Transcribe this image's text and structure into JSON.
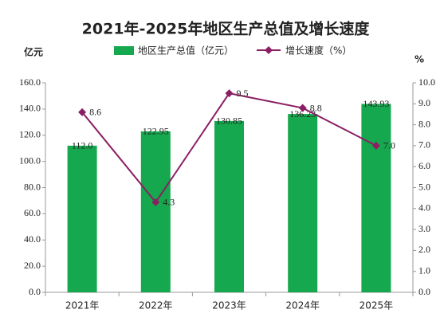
{
  "chart_data": {
    "type": "bar",
    "title": "2021年-2025年地区生产总值及增长速度",
    "y_label": "亿元",
    "y2_label": "%",
    "categories": [
      "2021年",
      "2022年",
      "2023年",
      "2024年",
      "2025年"
    ],
    "series": [
      {
        "name": "地区生产总值（亿元）",
        "type": "bar",
        "color": "#16a84e",
        "values": [
          112.0,
          122.95,
          130.85,
          136.23,
          143.93
        ],
        "value_labels": [
          "112.0",
          "122.95",
          "130.85",
          "136.23",
          "143.93"
        ]
      },
      {
        "name": "增长速度（%）",
        "type": "line",
        "axis": "y2",
        "color": "#8b1f63",
        "values": [
          8.6,
          4.3,
          9.5,
          8.8,
          7.0
        ],
        "value_labels": [
          "8.6",
          "4.3",
          "9.5",
          "8.8",
          "7.0"
        ]
      }
    ],
    "ylim": [
      0,
      160
    ],
    "yticks": [
      {
        "value": 0,
        "label": "0.0"
      },
      {
        "value": 20,
        "label": "20.0"
      },
      {
        "value": 40,
        "label": "40.0"
      },
      {
        "value": 60,
        "label": "60.0"
      },
      {
        "value": 80,
        "label": "80.0"
      },
      {
        "value": 100,
        "label": "100.0"
      },
      {
        "value": 120,
        "label": "120.0"
      },
      {
        "value": 140,
        "label": "140.0"
      },
      {
        "value": 160,
        "label": "160.0"
      }
    ],
    "y2lim": [
      0,
      10
    ],
    "y2ticks": [
      {
        "value": 0,
        "label": "0.0"
      },
      {
        "value": 1,
        "label": "1.0"
      },
      {
        "value": 2,
        "label": "2.0"
      },
      {
        "value": 3,
        "label": "3.0"
      },
      {
        "value": 4,
        "label": "4.0"
      },
      {
        "value": 5,
        "label": "5.0"
      },
      {
        "value": 6,
        "label": "6.0"
      },
      {
        "value": 7,
        "label": "7.0"
      },
      {
        "value": 8,
        "label": "8.0"
      },
      {
        "value": 9,
        "label": "9.0"
      },
      {
        "value": 10,
        "label": "10.0"
      }
    ],
    "grid": false
  }
}
